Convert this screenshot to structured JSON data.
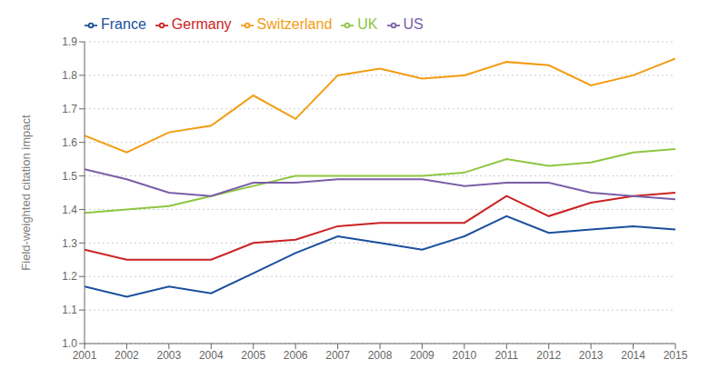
{
  "chart_data": {
    "type": "line",
    "ylabel": "Field-weighted citation impact",
    "x": [
      2001,
      2002,
      2003,
      2004,
      2005,
      2006,
      2007,
      2008,
      2009,
      2010,
      2011,
      2012,
      2013,
      2014,
      2015
    ],
    "series": [
      {
        "name": "France",
        "color": "#1a4f9c",
        "values": [
          1.17,
          1.14,
          1.17,
          1.15,
          1.21,
          1.27,
          1.32,
          1.3,
          1.28,
          1.32,
          1.38,
          1.33,
          1.34,
          1.35,
          1.34
        ]
      },
      {
        "name": "Germany",
        "color": "#cc2222",
        "values": [
          1.28,
          1.25,
          1.25,
          1.25,
          1.3,
          1.31,
          1.35,
          1.36,
          1.36,
          1.36,
          1.44,
          1.38,
          1.42,
          1.44,
          1.45
        ]
      },
      {
        "name": "UK",
        "color": "#8dc63f",
        "values": [
          1.39,
          1.4,
          1.41,
          1.44,
          1.47,
          1.5,
          1.5,
          1.5,
          1.5,
          1.51,
          1.55,
          1.53,
          1.54,
          1.57,
          1.58
        ]
      },
      {
        "name": "US",
        "color": "#7b5ea7",
        "values": [
          1.52,
          1.49,
          1.45,
          1.44,
          1.48,
          1.48,
          1.49,
          1.49,
          1.49,
          1.47,
          1.48,
          1.48,
          1.45,
          1.44,
          1.43
        ]
      },
      {
        "name": "Switzerland",
        "color": "#f39c12",
        "values": [
          1.62,
          1.57,
          1.63,
          1.65,
          1.74,
          1.67,
          1.8,
          1.82,
          1.79,
          1.8,
          1.84,
          1.83,
          1.77,
          1.8,
          1.85
        ]
      }
    ],
    "xlim": [
      2001,
      2015
    ],
    "xticks": [
      2001,
      2002,
      2003,
      2004,
      2005,
      2006,
      2007,
      2008,
      2009,
      2010,
      2011,
      2012,
      2013,
      2014,
      2015
    ],
    "ylim": [
      1.0,
      1.9
    ],
    "yticks": [
      {
        "value": 1.0,
        "label": "1.0"
      },
      1.1,
      1.2,
      1.3,
      1.4,
      1.5,
      1.6,
      1.7,
      1.8,
      1.9
    ],
    "grid": true,
    "legend": "upper left"
  }
}
